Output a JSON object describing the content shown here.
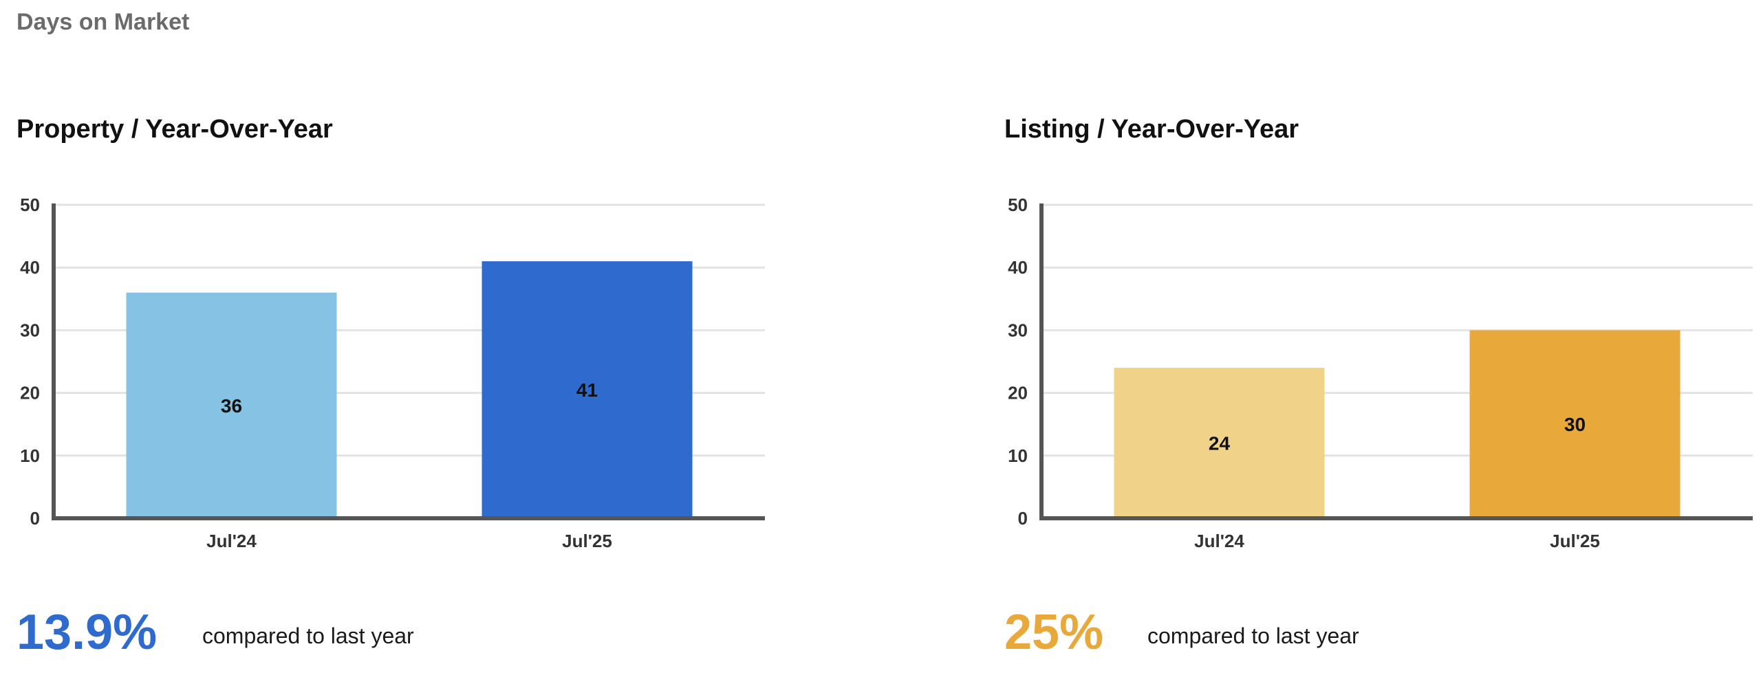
{
  "header": {
    "title": "Days on Market"
  },
  "panels": [
    {
      "title": "Property / Year-Over-Year",
      "change_value": "13.9%",
      "change_text": "compared to last year",
      "accent": "#2f6bce"
    },
    {
      "title": "Listing / Year-Over-Year",
      "change_value": "25%",
      "change_text": "compared to last year",
      "accent": "#e8a93a"
    }
  ],
  "chart_data": [
    {
      "type": "bar",
      "title": "Property / Year-Over-Year",
      "categories": [
        "Jul'24",
        "Jul'25"
      ],
      "values": [
        36,
        41
      ],
      "colors": [
        "#85c2e3",
        "#2f6bce"
      ],
      "ylim": [
        0,
        50
      ],
      "yticks": [
        0,
        10,
        20,
        30,
        40,
        50
      ],
      "grid": true,
      "xlabel": "",
      "ylabel": ""
    },
    {
      "type": "bar",
      "title": "Listing / Year-Over-Year",
      "categories": [
        "Jul'24",
        "Jul'25"
      ],
      "values": [
        24,
        30
      ],
      "colors": [
        "#f0d388",
        "#e8a93a"
      ],
      "ylim": [
        0,
        50
      ],
      "yticks": [
        0,
        10,
        20,
        30,
        40,
        50
      ],
      "grid": true,
      "xlabel": "",
      "ylabel": ""
    }
  ]
}
